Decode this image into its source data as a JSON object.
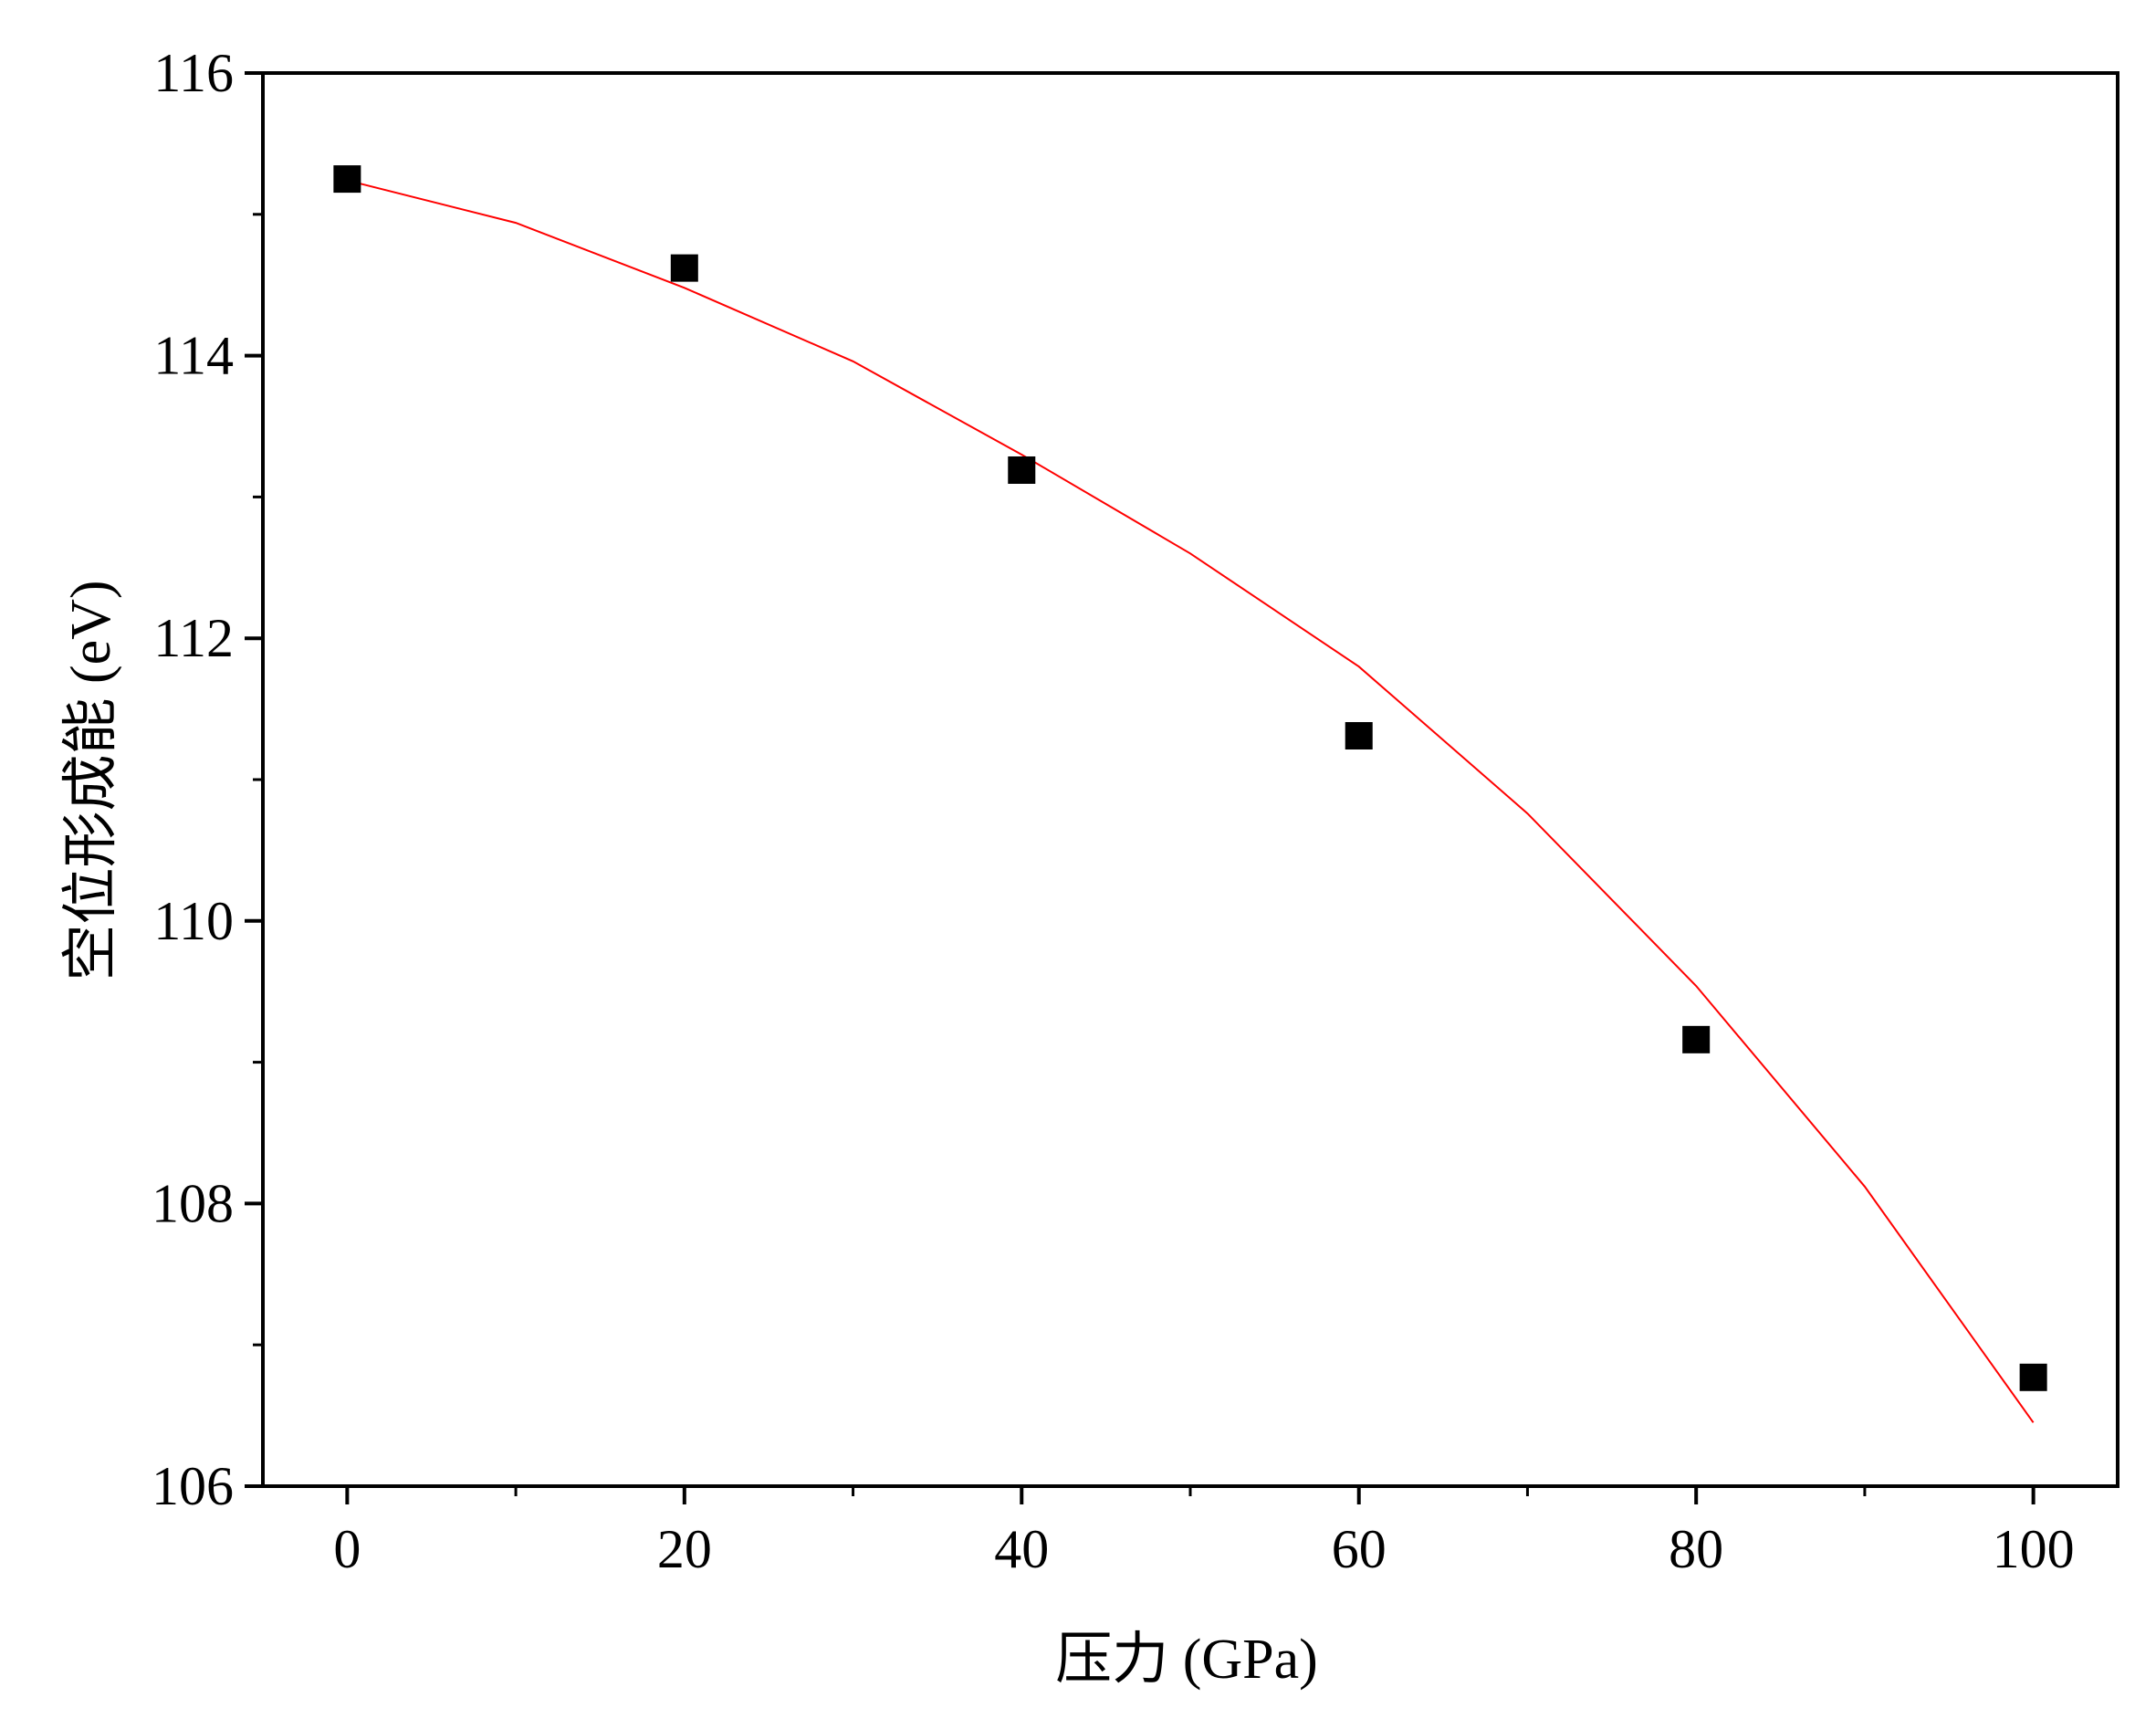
{
  "chart_data": {
    "type": "scatter",
    "title": "",
    "xlabel": "压力 (GPa)",
    "ylabel": "空位形成能 (eV)",
    "xlim": [
      -5,
      105
    ],
    "ylim": [
      106,
      116
    ],
    "x_ticks": [
      0,
      20,
      40,
      60,
      80,
      100
    ],
    "y_ticks": [
      106,
      108,
      110,
      112,
      114,
      116
    ],
    "x_tick_labels": [
      "0",
      "20",
      "40",
      "60",
      "80",
      "100"
    ],
    "y_tick_labels": [
      "106",
      "108",
      "110",
      "112",
      "114",
      "116"
    ],
    "grid": false,
    "legend": "none",
    "series": [
      {
        "type": "scatter",
        "marker": "square",
        "color": "#000000",
        "x": [
          0,
          20,
          40,
          60,
          80,
          100
        ],
        "y": [
          115.25,
          114.62,
          113.19,
          111.31,
          109.16,
          106.77
        ]
      },
      {
        "type": "line",
        "color": "#ff0000",
        "x": [
          0,
          10,
          20,
          30,
          40,
          50,
          60,
          70,
          80,
          90,
          100
        ],
        "y": [
          115.24,
          114.94,
          114.48,
          113.96,
          113.3,
          112.6,
          111.8,
          110.76,
          109.54,
          108.12,
          106.45
        ]
      }
    ]
  }
}
